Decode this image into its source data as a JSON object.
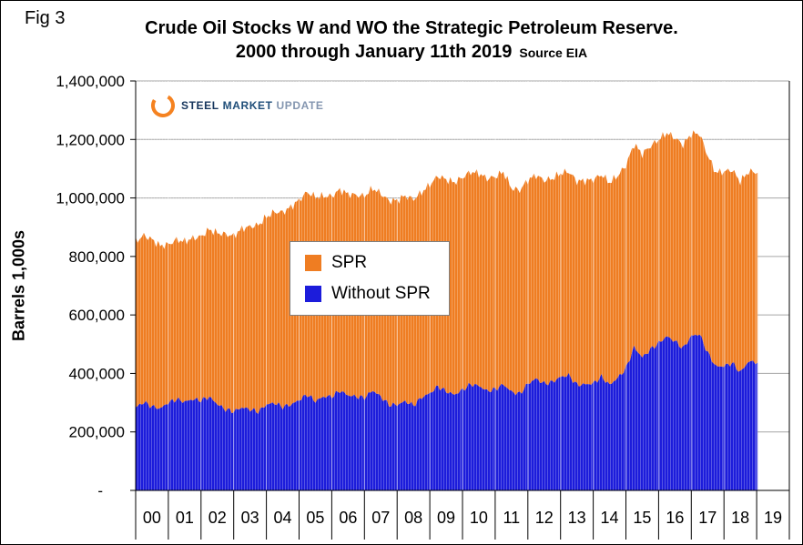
{
  "fig_label": "Fig 3",
  "logo": {
    "part1": "STEEL",
    "part2": "MARKET",
    "part3": "UPDATE"
  },
  "chart_data": {
    "type": "area",
    "stacked": true,
    "title_line1": "Crude Oil Stocks W and WO the Strategic Petroleum Reserve.",
    "title_line2": "2000 through January 11th 2019",
    "source": "Source EIA",
    "ylabel": "Barrels 1,000s",
    "ylim": [
      0,
      1400000
    ],
    "ytick_step": 200000,
    "zero_label": "-",
    "xlim": [
      2000,
      2020
    ],
    "x_categories": [
      "00",
      "01",
      "02",
      "03",
      "04",
      "05",
      "06",
      "07",
      "08",
      "09",
      "10",
      "11",
      "12",
      "13",
      "14",
      "15",
      "16",
      "17",
      "18",
      "19"
    ],
    "x": [
      2000,
      2000.25,
      2000.5,
      2000.75,
      2001,
      2001.25,
      2001.5,
      2001.75,
      2002,
      2002.25,
      2002.5,
      2002.75,
      2003,
      2003.25,
      2003.5,
      2003.75,
      2004,
      2004.25,
      2004.5,
      2004.75,
      2005,
      2005.25,
      2005.5,
      2005.75,
      2006,
      2006.25,
      2006.5,
      2006.75,
      2007,
      2007.25,
      2007.5,
      2007.75,
      2008,
      2008.25,
      2008.5,
      2008.75,
      2009,
      2009.25,
      2009.5,
      2009.75,
      2010,
      2010.25,
      2010.5,
      2010.75,
      2011,
      2011.25,
      2011.5,
      2011.75,
      2012,
      2012.25,
      2012.5,
      2012.75,
      2013,
      2013.25,
      2013.5,
      2013.75,
      2014,
      2014.25,
      2014.5,
      2014.75,
      2015,
      2015.25,
      2015.5,
      2015.75,
      2016,
      2016.25,
      2016.5,
      2016.75,
      2017,
      2017.25,
      2017.5,
      2017.75,
      2018,
      2018.25,
      2018.5,
      2018.75,
      2019.03
    ],
    "series": [
      {
        "name": "Without SPR",
        "color": "#1C1CDB",
        "values": [
          284000,
          302000,
          287000,
          280000,
          300000,
          312000,
          303000,
          312000,
          308000,
          320000,
          295000,
          277000,
          270000,
          284000,
          277000,
          269000,
          294000,
          299000,
          286000,
          293000,
          309000,
          328000,
          305000,
          321000,
          321000,
          341000,
          325000,
          321000,
          317000,
          342000,
          321000,
          293000,
          293000,
          305000,
          291000,
          318000,
          332000,
          356000,
          339000,
          327000,
          344000,
          363000,
          358000,
          340000,
          346000,
          363000,
          337000,
          330000,
          365000,
          382000,
          365000,
          371000,
          388000,
          394000,
          361000,
          363000,
          366000,
          389000,
          361000,
          385000,
          417000,
          490000,
          455000,
          482000,
          504000,
          527000,
          510000,
          486000,
          528000,
          535000,
          471000,
          424000,
          425000,
          436000,
          404000,
          441000,
          437000
        ]
      },
      {
        "name": "SPR",
        "color": "#EF7D22",
        "values": [
          567000,
          570000,
          571000,
          556000,
          541000,
          545000,
          548000,
          550000,
          560000,
          572000,
          585000,
          599000,
          600000,
          611000,
          625000,
          638000,
          641000,
          653000,
          665000,
          676000,
          684000,
          692000,
          698000,
          685000,
          685000,
          687000,
          688000,
          689000,
          689000,
          691000,
          694000,
          697000,
          699000,
          702000,
          704000,
          701000,
          713000,
          719000,
          724000,
          726000,
          726000,
          726000,
          726000,
          726000,
          726000,
          726000,
          696000,
          696000,
          696000,
          696000,
          695000,
          695000,
          696000,
          696000,
          696000,
          696000,
          696000,
          691000,
          691000,
          691000,
          694000,
          694000,
          695000,
          695000,
          695000,
          695000,
          695000,
          695000,
          691000,
          685000,
          674000,
          663000,
          665000,
          660000,
          652000,
          649000,
          649000
        ]
      }
    ],
    "legend_items": [
      {
        "label": "SPR",
        "color": "#EF7D22"
      },
      {
        "label": "Without SPR",
        "color": "#1C1CDB"
      }
    ],
    "legend_position": "inside-center-left"
  }
}
